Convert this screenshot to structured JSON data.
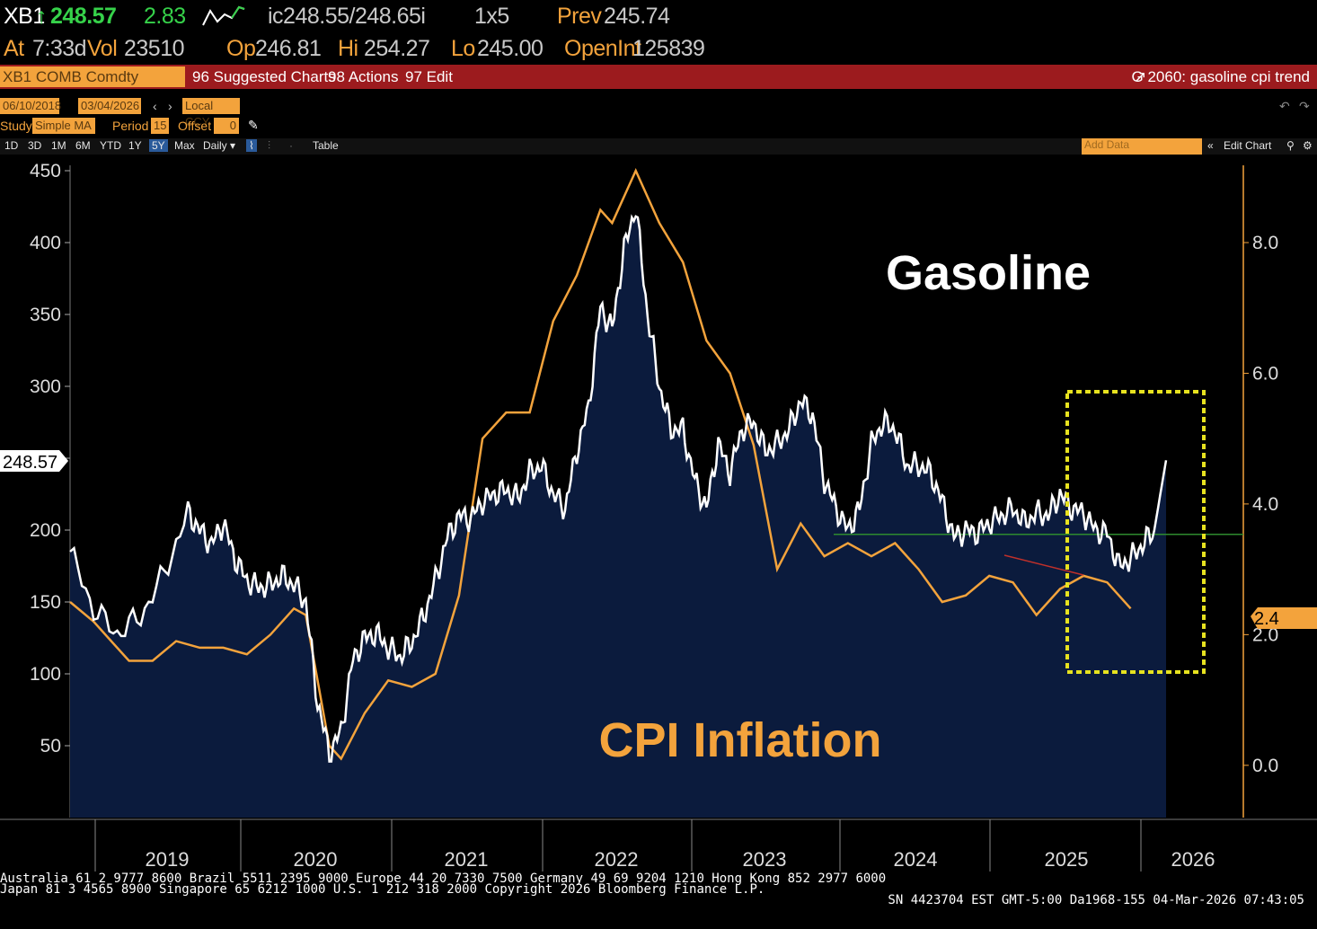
{
  "header": {
    "ticker": "XB1",
    "last_price": "248.57",
    "change": "2.83",
    "bid_ask": "ic248.55/248.65i",
    "size": "1x5",
    "prev_label": "Prev",
    "prev_value": "245.74",
    "at_label": "At",
    "at_time": "7:33d",
    "vol_label": "Vol",
    "vol_value": "23510",
    "op_label": "Op",
    "op_value": "246.81",
    "hi_label": "Hi",
    "hi_value": "254.27",
    "lo_label": "Lo",
    "lo_value": "245.00",
    "oi_label": "OpenInt",
    "oi_value": "125839"
  },
  "toolbar": {
    "security": "XB1 COMB Comdty",
    "suggested_charts": "96 Suggested Charts",
    "actions": "98 Actions",
    "edit": "97 Edit",
    "chart_title": "G 2060: gasoline cpi trend"
  },
  "controls": {
    "start_date": "06/10/2018",
    "end_date": "03/04/2026",
    "currency": "Local CCY",
    "study_label": "Study",
    "study_value": "Simple MA",
    "period_label": "Period",
    "period_value": "15",
    "offset_label": "Offset",
    "offset_value": "0"
  },
  "timebar": {
    "ranges": [
      "1D",
      "3D",
      "1M",
      "6M",
      "YTD",
      "1Y",
      "5Y",
      "Max"
    ],
    "selected_range": "5Y",
    "frequency": "Daily",
    "table_label": "Table",
    "add_data_placeholder": "Add Data",
    "edit_chart": "Edit Chart"
  },
  "chart_data": {
    "type": "line",
    "left_axis": {
      "ticks": [
        50,
        100,
        150,
        200,
        250,
        300,
        350,
        400,
        450
      ],
      "ylim": [
        0,
        450
      ]
    },
    "right_axis": {
      "ticks": [
        "0.0",
        "2.0",
        "4.0",
        "6.0",
        "8.0"
      ],
      "ylim": [
        -0.8,
        9.1
      ]
    },
    "x_tick_labels": [
      "2019",
      "2020",
      "2021",
      "2022",
      "2023",
      "2024",
      "2025",
      "2026"
    ],
    "last_price_tag": "248.57",
    "cpi_last_tag": "2.4",
    "annotations": {
      "gasoline": "Gasoline",
      "cpi": "CPI Inflation"
    },
    "colors": {
      "gasoline": "#ffffff",
      "cpi": "#f3a33c",
      "fill": "#0b1b3d",
      "highlight_box": "#e7e21f",
      "reference_line": "#2e8b2e"
    },
    "series": [
      {
        "axis": "left",
        "points": [
          [
            "2018-06",
            185
          ],
          [
            "2018-08",
            145
          ],
          [
            "2018-10",
            128
          ],
          [
            "2018-12",
            140
          ],
          [
            "2019-02",
            170
          ],
          [
            "2019-04",
            212
          ],
          [
            "2019-05",
            200
          ],
          [
            "2019-06",
            190
          ],
          [
            "2019-07",
            205
          ],
          [
            "2019-08",
            180
          ],
          [
            "2019-09",
            165
          ],
          [
            "2019-10",
            160
          ],
          [
            "2019-11",
            162
          ],
          [
            "2019-12",
            168
          ],
          [
            "2020-01",
            162
          ],
          [
            "2020-02",
            150
          ],
          [
            "2020-03",
            80
          ],
          [
            "2020-04",
            45
          ],
          [
            "2020-05",
            60
          ],
          [
            "2020-06",
            110
          ],
          [
            "2020-07",
            125
          ],
          [
            "2020-08",
            128
          ],
          [
            "2020-09",
            118
          ],
          [
            "2020-10",
            112
          ],
          [
            "2020-11",
            122
          ],
          [
            "2020-12",
            140
          ],
          [
            "2021-01",
            165
          ],
          [
            "2021-02",
            195
          ],
          [
            "2021-03",
            210
          ],
          [
            "2021-04",
            208
          ],
          [
            "2021-05",
            220
          ],
          [
            "2021-06",
            225
          ],
          [
            "2021-07",
            228
          ],
          [
            "2021-08",
            222
          ],
          [
            "2021-09",
            240
          ],
          [
            "2021-10",
            245
          ],
          [
            "2021-11",
            225
          ],
          [
            "2021-12",
            215
          ],
          [
            "2022-01",
            255
          ],
          [
            "2022-02",
            285
          ],
          [
            "2022-03",
            355
          ],
          [
            "2022-04",
            340
          ],
          [
            "2022-05",
            395
          ],
          [
            "2022-06",
            425
          ],
          [
            "2022-07",
            350
          ],
          [
            "2022-08",
            300
          ],
          [
            "2022-09",
            270
          ],
          [
            "2022-10",
            270
          ],
          [
            "2022-11",
            235
          ],
          [
            "2022-12",
            215
          ],
          [
            "2023-01",
            260
          ],
          [
            "2023-02",
            240
          ],
          [
            "2023-03",
            270
          ],
          [
            "2023-04",
            275
          ],
          [
            "2023-05",
            255
          ],
          [
            "2023-06",
            260
          ],
          [
            "2023-07",
            270
          ],
          [
            "2023-08",
            290
          ],
          [
            "2023-09",
            280
          ],
          [
            "2023-10",
            235
          ],
          [
            "2023-11",
            215
          ],
          [
            "2023-12",
            200
          ],
          [
            "2024-01",
            215
          ],
          [
            "2024-02",
            260
          ],
          [
            "2024-03",
            275
          ],
          [
            "2024-04",
            270
          ],
          [
            "2024-05",
            245
          ],
          [
            "2024-06",
            245
          ],
          [
            "2024-07",
            240
          ],
          [
            "2024-08",
            220
          ],
          [
            "2024-09",
            195
          ],
          [
            "2024-10",
            200
          ],
          [
            "2024-11",
            198
          ],
          [
            "2024-12",
            205
          ],
          [
            "2025-01",
            210
          ],
          [
            "2025-02",
            215
          ],
          [
            "2025-03",
            205
          ],
          [
            "2025-04",
            212
          ],
          [
            "2025-05",
            210
          ],
          [
            "2025-06",
            225
          ],
          [
            "2025-07",
            215
          ],
          [
            "2025-08",
            212
          ],
          [
            "2025-09",
            200
          ],
          [
            "2025-10",
            198
          ],
          [
            "2025-11",
            175
          ],
          [
            "2025-12",
            180
          ],
          [
            "2026-01",
            190
          ],
          [
            "2026-02",
            200
          ],
          [
            "2026-03",
            248.57
          ]
        ]
      },
      {
        "axis": "right",
        "points": [
          [
            "2018-06",
            2.5
          ],
          [
            "2018-08",
            2.2
          ],
          [
            "2018-11",
            1.6
          ],
          [
            "2019-01",
            1.6
          ],
          [
            "2019-03",
            1.9
          ],
          [
            "2019-05",
            1.8
          ],
          [
            "2019-07",
            1.8
          ],
          [
            "2019-09",
            1.7
          ],
          [
            "2019-11",
            2.0
          ],
          [
            "2020-01",
            2.4
          ],
          [
            "2020-02",
            2.3
          ],
          [
            "2020-04",
            0.3
          ],
          [
            "2020-05",
            0.1
          ],
          [
            "2020-07",
            0.8
          ],
          [
            "2020-09",
            1.3
          ],
          [
            "2020-11",
            1.2
          ],
          [
            "2021-01",
            1.4
          ],
          [
            "2021-03",
            2.6
          ],
          [
            "2021-05",
            5.0
          ],
          [
            "2021-07",
            5.4
          ],
          [
            "2021-09",
            5.4
          ],
          [
            "2021-11",
            6.8
          ],
          [
            "2022-01",
            7.5
          ],
          [
            "2022-03",
            8.5
          ],
          [
            "2022-04",
            8.3
          ],
          [
            "2022-06",
            9.1
          ],
          [
            "2022-08",
            8.3
          ],
          [
            "2022-10",
            7.7
          ],
          [
            "2022-12",
            6.5
          ],
          [
            "2023-02",
            6.0
          ],
          [
            "2023-04",
            4.9
          ],
          [
            "2023-06",
            3.0
          ],
          [
            "2023-08",
            3.7
          ],
          [
            "2023-10",
            3.2
          ],
          [
            "2023-12",
            3.4
          ],
          [
            "2024-02",
            3.2
          ],
          [
            "2024-04",
            3.4
          ],
          [
            "2024-06",
            3.0
          ],
          [
            "2024-08",
            2.5
          ],
          [
            "2024-10",
            2.6
          ],
          [
            "2024-12",
            2.9
          ],
          [
            "2025-02",
            2.8
          ],
          [
            "2025-04",
            2.3
          ],
          [
            "2025-06",
            2.7
          ],
          [
            "2025-08",
            2.9
          ],
          [
            "2025-10",
            2.8
          ],
          [
            "2025-12",
            2.4
          ]
        ]
      }
    ]
  },
  "footer": {
    "line1": "Australia 61 2 9777 8600 Brazil 5511 2395 9000 Europe 44 20 7330 7500 Germany 49 69 9204 1210 Hong Kong 852 2977 6000",
    "line2": "Japan 81 3 4565 8900        Singapore 65 6212 1000        U.S. 1 212 318 2000        Copyright 2026 Bloomberg Finance L.P.",
    "line3": "SN 4423704 EST  GMT-5:00 Da1968-155 04-Mar-2026 07:43:05"
  }
}
